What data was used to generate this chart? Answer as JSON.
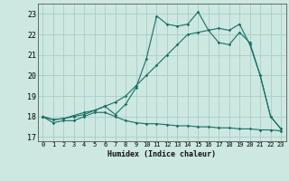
{
  "xlabel": "Humidex (Indice chaleur)",
  "background_color": "#cce8e0",
  "grid_color": "#aacccc",
  "line_color": "#1a6e64",
  "xlim": [
    -0.5,
    23.5
  ],
  "ylim": [
    16.8,
    23.5
  ],
  "xticks": [
    0,
    1,
    2,
    3,
    4,
    5,
    6,
    7,
    8,
    9,
    10,
    11,
    12,
    13,
    14,
    15,
    16,
    17,
    18,
    19,
    20,
    21,
    22,
    23
  ],
  "yticks": [
    17,
    18,
    19,
    20,
    21,
    22,
    23
  ],
  "line1_x": [
    0,
    1,
    2,
    3,
    4,
    5,
    6,
    7,
    8,
    9,
    10,
    11,
    12,
    13,
    14,
    15,
    16,
    17,
    18,
    19,
    20,
    21,
    22,
    23
  ],
  "line1_y": [
    18.0,
    17.7,
    17.8,
    17.8,
    18.0,
    18.2,
    18.2,
    18.0,
    17.8,
    17.7,
    17.65,
    17.65,
    17.6,
    17.55,
    17.55,
    17.5,
    17.5,
    17.45,
    17.45,
    17.4,
    17.4,
    17.35,
    17.35,
    17.3
  ],
  "line2_x": [
    0,
    1,
    2,
    3,
    4,
    5,
    6,
    7,
    8,
    9,
    10,
    11,
    12,
    13,
    14,
    15,
    16,
    17,
    18,
    19,
    20,
    21,
    22,
    23
  ],
  "line2_y": [
    18.0,
    17.85,
    17.9,
    18.0,
    18.1,
    18.3,
    18.5,
    18.7,
    19.0,
    19.5,
    20.0,
    20.5,
    21.0,
    21.5,
    22.0,
    22.1,
    22.2,
    22.3,
    22.2,
    22.5,
    21.5,
    20.0,
    18.0,
    17.4
  ],
  "line3_x": [
    0,
    1,
    2,
    3,
    4,
    5,
    6,
    7,
    8,
    9,
    10,
    11,
    12,
    13,
    14,
    15,
    16,
    17,
    18,
    19,
    20,
    21,
    22,
    23
  ],
  "line3_y": [
    18.0,
    17.85,
    17.9,
    18.05,
    18.2,
    18.3,
    18.5,
    18.1,
    18.6,
    19.4,
    20.8,
    22.9,
    22.5,
    22.4,
    22.5,
    23.1,
    22.2,
    21.6,
    21.5,
    22.1,
    21.6,
    20.0,
    18.0,
    17.4
  ]
}
